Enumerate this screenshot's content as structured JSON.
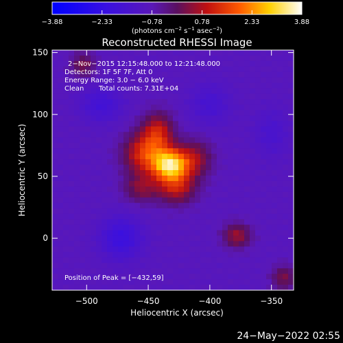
{
  "chart_data": {
    "type": "heatmap",
    "title": "Reconstructed RHESSI Image",
    "xlabel": "Heliocentric X (arcsec)",
    "ylabel": "Heliocentric Y (arcsec)",
    "xlim": [
      -528,
      -332
    ],
    "ylim": [
      -42,
      152
    ],
    "xticks": [
      -500,
      -450,
      -400,
      -350
    ],
    "xtick_labels": [
      "−500",
      "−450",
      "−400",
      "−350"
    ],
    "yticks": [
      0,
      50,
      100,
      150
    ],
    "ytick_labels": [
      "0",
      "50",
      "100",
      "150"
    ],
    "colorbar": {
      "range": [
        -3.88,
        3.88
      ],
      "ticks": [
        -3.88,
        -2.33,
        -0.78,
        0.78,
        2.33,
        3.88
      ],
      "tick_labels": [
        "−3.88",
        "−2.33",
        "−0.78",
        "0.78",
        "2.33",
        "3.88"
      ],
      "unit_parts": [
        "(photons cm",
        "−2",
        " s",
        "−1",
        " asec",
        "−2",
        ")"
      ]
    },
    "annotations": [
      "2−Nov−2015 12:15:48.000 to 12:21:48.000",
      "Detectors: 1F 5F 7F, Att 0",
      "Energy Range: 3.0 − 6.0 keV",
      "Clean",
      "Total counts: 7.31E+04"
    ],
    "peak_label": "Position of Peak = [−432,59]",
    "peak": {
      "x": -432,
      "y": 59
    },
    "sources": [
      {
        "x": -432,
        "y": 59,
        "amp": 3.88,
        "sx": 10,
        "sy": 9
      },
      {
        "x": -453,
        "y": 68,
        "amp": 2.2,
        "sx": 12,
        "sy": 12
      },
      {
        "x": -412,
        "y": 64,
        "amp": 1.4,
        "sx": 10,
        "sy": 11
      },
      {
        "x": -442,
        "y": 86,
        "amp": 1.8,
        "sx": 9,
        "sy": 11
      },
      {
        "x": -427,
        "y": 40,
        "amp": 1.7,
        "sx": 11,
        "sy": 9
      },
      {
        "x": -456,
        "y": 40,
        "amp": 1.2,
        "sx": 10,
        "sy": 8
      },
      {
        "x": -503,
        "y": 140,
        "amp": 1.2,
        "sx": 7,
        "sy": 7
      },
      {
        "x": -378,
        "y": 2,
        "amp": 1.5,
        "sx": 8,
        "sy": 7
      },
      {
        "x": -340,
        "y": -32,
        "amp": 1.2,
        "sx": 7,
        "sy": 7
      },
      {
        "x": -488,
        "y": 108,
        "amp": -0.9,
        "sx": 12,
        "sy": 10
      },
      {
        "x": -472,
        "y": 0,
        "amp": -1.2,
        "sx": 12,
        "sy": 12
      },
      {
        "x": -400,
        "y": 108,
        "amp": -0.7,
        "sx": 12,
        "sy": 12
      },
      {
        "x": -350,
        "y": 85,
        "amp": -0.6,
        "sx": 10,
        "sy": 14
      }
    ],
    "background": -0.9
  },
  "footer": {
    "timestamp": "24−May−2022 02:55"
  }
}
